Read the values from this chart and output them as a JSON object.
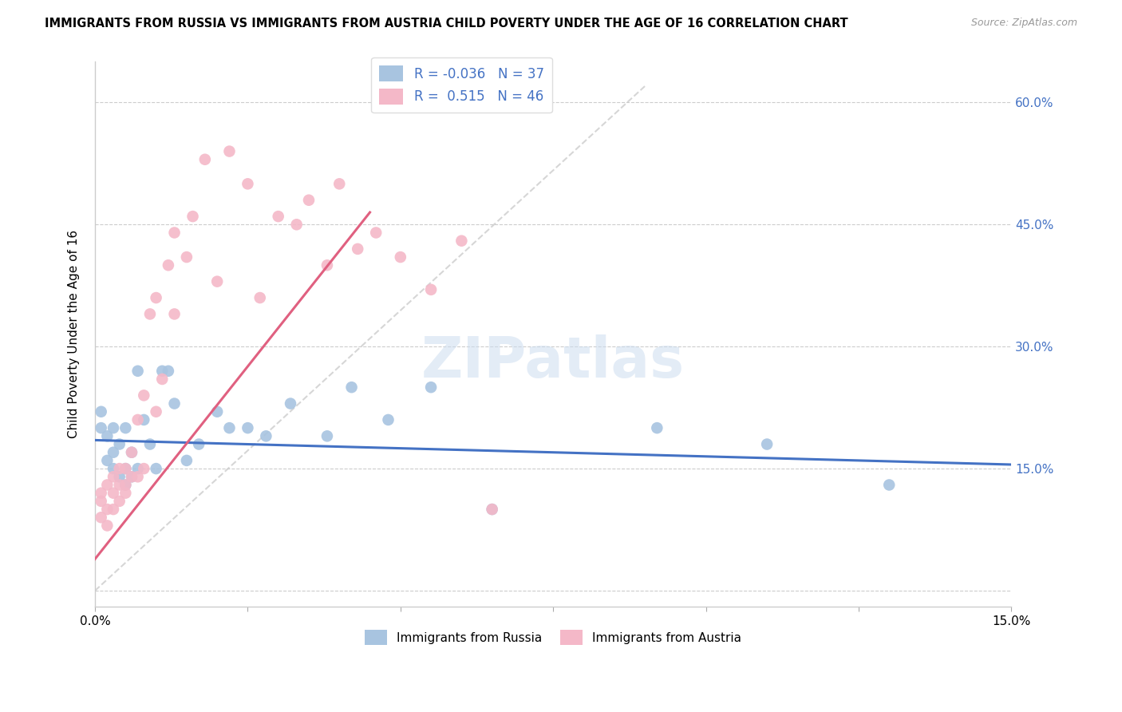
{
  "title": "IMMIGRANTS FROM RUSSIA VS IMMIGRANTS FROM AUSTRIA CHILD POVERTY UNDER THE AGE OF 16 CORRELATION CHART",
  "source": "Source: ZipAtlas.com",
  "ylabel": "Child Poverty Under the Age of 16",
  "y_ticks": [
    0.0,
    0.15,
    0.3,
    0.45,
    0.6
  ],
  "y_tick_labels": [
    "",
    "15.0%",
    "30.0%",
    "45.0%",
    "60.0%"
  ],
  "x_range": [
    0.0,
    0.15
  ],
  "y_range": [
    -0.02,
    0.65
  ],
  "legend_r_russia": "-0.036",
  "legend_n_russia": "37",
  "legend_r_austria": "0.515",
  "legend_n_austria": "46",
  "russia_color": "#a8c4e0",
  "austria_color": "#f4b8c8",
  "russia_line_color": "#4472c4",
  "austria_line_color": "#e06080",
  "watermark": "ZIPatlas",
  "russia_points_x": [
    0.001,
    0.001,
    0.002,
    0.002,
    0.003,
    0.003,
    0.003,
    0.004,
    0.004,
    0.005,
    0.005,
    0.005,
    0.006,
    0.006,
    0.007,
    0.007,
    0.008,
    0.009,
    0.01,
    0.011,
    0.012,
    0.013,
    0.015,
    0.017,
    0.02,
    0.022,
    0.025,
    0.028,
    0.032,
    0.038,
    0.042,
    0.048,
    0.055,
    0.065,
    0.092,
    0.11,
    0.13
  ],
  "russia_points_y": [
    0.2,
    0.22,
    0.16,
    0.19,
    0.15,
    0.17,
    0.2,
    0.14,
    0.18,
    0.13,
    0.15,
    0.2,
    0.14,
    0.17,
    0.15,
    0.27,
    0.21,
    0.18,
    0.15,
    0.27,
    0.27,
    0.23,
    0.16,
    0.18,
    0.22,
    0.2,
    0.2,
    0.19,
    0.23,
    0.19,
    0.25,
    0.21,
    0.25,
    0.1,
    0.2,
    0.18,
    0.13
  ],
  "austria_points_x": [
    0.001,
    0.001,
    0.001,
    0.002,
    0.002,
    0.002,
    0.003,
    0.003,
    0.003,
    0.004,
    0.004,
    0.004,
    0.005,
    0.005,
    0.005,
    0.006,
    0.006,
    0.007,
    0.007,
    0.008,
    0.008,
    0.009,
    0.01,
    0.01,
    0.011,
    0.012,
    0.013,
    0.013,
    0.015,
    0.016,
    0.018,
    0.02,
    0.022,
    0.025,
    0.027,
    0.03,
    0.033,
    0.035,
    0.038,
    0.04,
    0.043,
    0.046,
    0.05,
    0.055,
    0.06,
    0.065
  ],
  "austria_points_y": [
    0.09,
    0.11,
    0.12,
    0.08,
    0.1,
    0.13,
    0.1,
    0.12,
    0.14,
    0.11,
    0.13,
    0.15,
    0.12,
    0.15,
    0.13,
    0.14,
    0.17,
    0.14,
    0.21,
    0.15,
    0.24,
    0.34,
    0.22,
    0.36,
    0.26,
    0.4,
    0.44,
    0.34,
    0.41,
    0.46,
    0.53,
    0.38,
    0.54,
    0.5,
    0.36,
    0.46,
    0.45,
    0.48,
    0.4,
    0.5,
    0.42,
    0.44,
    0.41,
    0.37,
    0.43,
    0.1
  ],
  "russia_trend_x": [
    0.0,
    0.15
  ],
  "russia_trend_y": [
    0.185,
    0.155
  ],
  "austria_trend_x": [
    -0.002,
    0.045
  ],
  "austria_trend_y": [
    0.02,
    0.465
  ]
}
